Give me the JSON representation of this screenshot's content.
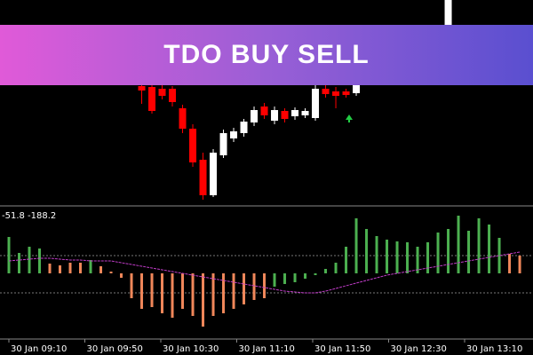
{
  "banner": {
    "title": "TDO BUY SELL"
  },
  "chart_data": [
    {
      "type": "candlestick",
      "x": [
        13,
        14,
        15,
        16,
        17,
        18,
        19,
        20,
        21,
        22,
        23,
        24,
        25,
        26,
        27,
        28,
        29,
        30,
        31,
        32,
        33,
        34,
        43
      ],
      "open": [
        143,
        142,
        140,
        140,
        118,
        95,
        60,
        20,
        65,
        84,
        90,
        102,
        120,
        104,
        115,
        109,
        110,
        107,
        140,
        137,
        137,
        135,
        212
      ],
      "close": [
        138,
        115,
        132,
        125,
        95,
        57,
        20,
        68,
        90,
        92,
        103,
        116,
        110,
        116,
        106,
        116,
        115,
        140,
        134,
        132,
        133,
        145,
        240
      ],
      "high": [
        144,
        144,
        144,
        143,
        122,
        100,
        68,
        72,
        94,
        96,
        106,
        120,
        124,
        120,
        118,
        119,
        118,
        145,
        146,
        142,
        140,
        150,
        240
      ],
      "low": [
        123,
        112,
        128,
        120,
        90,
        52,
        15,
        18,
        62,
        80,
        86,
        98,
        106,
        100,
        102,
        105,
        107,
        104,
        130,
        118,
        130,
        132,
        208
      ],
      "up_color": "#ffffff",
      "down_color": "#ff0000",
      "xlim": [
        -0.87,
        51.3
      ],
      "ylim": [
        15,
        240
      ]
    },
    {
      "type": "histogram",
      "indicator_label": "-51.8 -188.2",
      "x": [
        0,
        1,
        2,
        3,
        4,
        5,
        6,
        7,
        8,
        9,
        10,
        11,
        12,
        13,
        14,
        15,
        16,
        17,
        18,
        19,
        20,
        21,
        22,
        23,
        24,
        25,
        26,
        27,
        28,
        29,
        30,
        31,
        32,
        33,
        34,
        35,
        36,
        37,
        38,
        39,
        40,
        41,
        42,
        43,
        44,
        45,
        46,
        47,
        48,
        49,
        50
      ],
      "series": [
        {
          "color": "#4cb050",
          "values": [
            41,
            23,
            30,
            28,
            null,
            null,
            null,
            null,
            15,
            null,
            null,
            null,
            null,
            null,
            null,
            null,
            null,
            null,
            null,
            null,
            null,
            null,
            null,
            null,
            null,
            null,
            -15,
            -12,
            -10,
            -6,
            -2,
            5,
            12,
            30,
            62,
            50,
            42,
            38,
            36,
            35,
            30,
            35,
            46,
            50,
            65,
            48,
            62,
            55,
            40,
            null,
            null
          ]
        },
        {
          "color": "#f0875a",
          "values": [
            null,
            null,
            null,
            null,
            11,
            9,
            12,
            12,
            null,
            8,
            2,
            -5,
            -28,
            -40,
            -38,
            -45,
            -50,
            -40,
            -48,
            -60,
            -48,
            -45,
            -40,
            -35,
            -30,
            -28,
            null,
            null,
            null,
            null,
            null,
            null,
            null,
            null,
            null,
            null,
            null,
            null,
            null,
            null,
            null,
            null,
            null,
            null,
            null,
            null,
            null,
            null,
            null,
            22,
            20
          ]
        },
        {
          "type": "line",
          "color": "#c03cc8",
          "values": [
            14,
            15,
            16,
            17,
            17,
            16,
            15,
            15,
            14,
            14,
            14,
            12,
            10,
            8,
            6,
            4,
            2,
            0,
            -2,
            -4,
            -6,
            -8,
            -10,
            -12,
            -14,
            -16,
            -18,
            -20,
            -21,
            -22,
            -22,
            -20,
            -17,
            -14,
            -11,
            -8,
            -5,
            -2,
            0,
            2,
            4,
            6,
            8,
            10,
            12,
            14,
            16,
            18,
            20,
            22,
            24
          ]
        }
      ],
      "levels": [
        20,
        -22
      ],
      "xlim": [
        -0.87,
        51.3
      ],
      "ylim": [
        -72,
        72
      ],
      "x_labels": [
        "30 Jan 09:10",
        "30 Jan 09:50",
        "30 Jan 10:30",
        "30 Jan 11:10",
        "30 Jan 11:50",
        "30 Jan 12:30",
        "30 Jan 13:10"
      ]
    }
  ]
}
